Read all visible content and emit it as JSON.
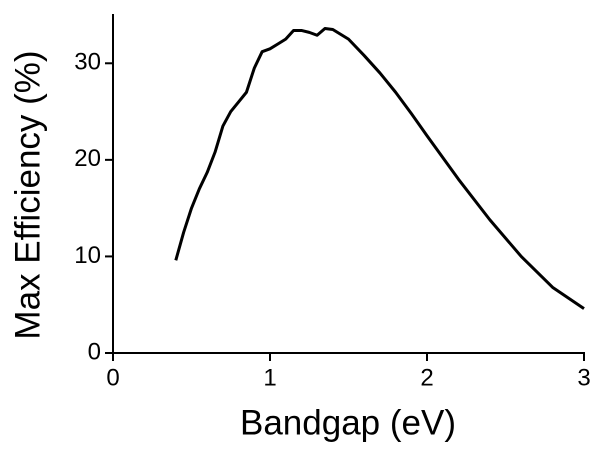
{
  "chart_data": {
    "type": "line",
    "x_label": "Bandgap (eV)",
    "y_label": "Max Efficiency (%)",
    "xlim": [
      0,
      3
    ],
    "ylim": [
      0,
      35
    ],
    "xticks": [
      0,
      1,
      2,
      3
    ],
    "yticks": [
      0,
      10,
      20,
      30
    ],
    "grid": false,
    "series": [
      {
        "color": "#000000",
        "x": [
          0.4,
          0.45,
          0.5,
          0.55,
          0.6,
          0.65,
          0.7,
          0.75,
          0.8,
          0.85,
          0.9,
          0.95,
          1.0,
          1.05,
          1.1,
          1.15,
          1.2,
          1.25,
          1.3,
          1.35,
          1.4,
          1.5,
          1.6,
          1.7,
          1.8,
          1.9,
          2.0,
          2.2,
          2.4,
          2.6,
          2.8,
          3.0
        ],
        "values": [
          9.6,
          12.5,
          15,
          17,
          18.7,
          20.8,
          23.5,
          25,
          26,
          27,
          29.5,
          31.2,
          31.5,
          32,
          32.5,
          33.4,
          33.4,
          33.2,
          32.9,
          33.6,
          33.5,
          32.5,
          30.8,
          29,
          27,
          24.8,
          22.5,
          18,
          13.8,
          10,
          6.8,
          4.6
        ]
      }
    ]
  }
}
